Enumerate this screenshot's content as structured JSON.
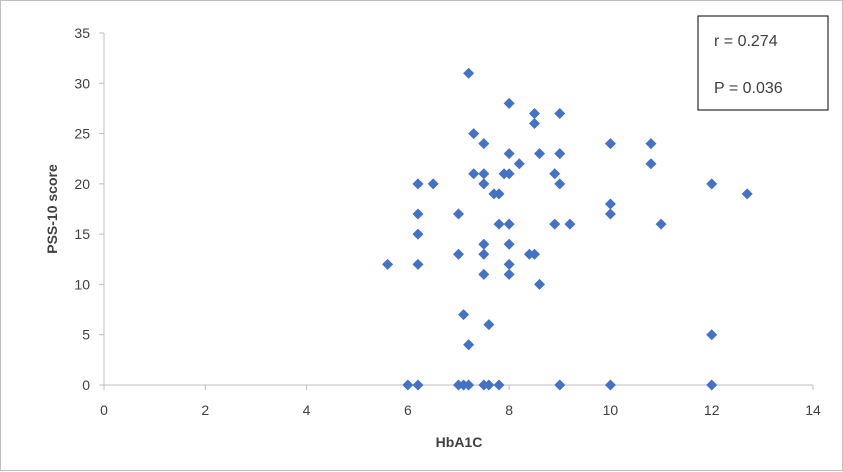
{
  "chart_data": {
    "type": "scatter",
    "xlabel": "HbA1C",
    "ylabel": "PSS-10 score",
    "xlim": [
      0,
      14
    ],
    "ylim": [
      0,
      35
    ],
    "xticks": [
      0,
      2,
      4,
      6,
      8,
      10,
      12,
      14
    ],
    "yticks": [
      0,
      5,
      10,
      15,
      20,
      25,
      30,
      35
    ],
    "grid": false,
    "marker": "diamond",
    "marker_color": "#4472C4",
    "annotations": [
      "r = 0.274",
      "P = 0.036"
    ],
    "annotation_box": "top-right",
    "points": [
      {
        "x": 5.6,
        "y": 12
      },
      {
        "x": 6.0,
        "y": 0
      },
      {
        "x": 6.2,
        "y": 0
      },
      {
        "x": 6.2,
        "y": 20
      },
      {
        "x": 6.2,
        "y": 17
      },
      {
        "x": 6.2,
        "y": 15
      },
      {
        "x": 6.2,
        "y": 12
      },
      {
        "x": 6.5,
        "y": 20
      },
      {
        "x": 7.0,
        "y": 17
      },
      {
        "x": 7.0,
        "y": 13
      },
      {
        "x": 7.0,
        "y": 0
      },
      {
        "x": 7.1,
        "y": 7
      },
      {
        "x": 7.1,
        "y": 0
      },
      {
        "x": 7.2,
        "y": 31
      },
      {
        "x": 7.2,
        "y": 4
      },
      {
        "x": 7.2,
        "y": 0
      },
      {
        "x": 7.3,
        "y": 25
      },
      {
        "x": 7.3,
        "y": 21
      },
      {
        "x": 7.5,
        "y": 24
      },
      {
        "x": 7.5,
        "y": 21
      },
      {
        "x": 7.5,
        "y": 20
      },
      {
        "x": 7.5,
        "y": 14
      },
      {
        "x": 7.5,
        "y": 13
      },
      {
        "x": 7.5,
        "y": 11
      },
      {
        "x": 7.5,
        "y": 0
      },
      {
        "x": 7.6,
        "y": 6
      },
      {
        "x": 7.6,
        "y": 0
      },
      {
        "x": 7.7,
        "y": 19
      },
      {
        "x": 7.8,
        "y": 19
      },
      {
        "x": 7.8,
        "y": 16
      },
      {
        "x": 7.8,
        "y": 0
      },
      {
        "x": 7.9,
        "y": 21
      },
      {
        "x": 8.0,
        "y": 28
      },
      {
        "x": 8.0,
        "y": 23
      },
      {
        "x": 8.0,
        "y": 21
      },
      {
        "x": 8.0,
        "y": 16
      },
      {
        "x": 8.0,
        "y": 14
      },
      {
        "x": 8.0,
        "y": 12
      },
      {
        "x": 8.0,
        "y": 11
      },
      {
        "x": 8.2,
        "y": 22
      },
      {
        "x": 8.4,
        "y": 13
      },
      {
        "x": 8.5,
        "y": 27
      },
      {
        "x": 8.5,
        "y": 26
      },
      {
        "x": 8.5,
        "y": 13
      },
      {
        "x": 8.6,
        "y": 23
      },
      {
        "x": 8.6,
        "y": 10
      },
      {
        "x": 8.9,
        "y": 21
      },
      {
        "x": 8.9,
        "y": 16
      },
      {
        "x": 9.0,
        "y": 27
      },
      {
        "x": 9.0,
        "y": 23
      },
      {
        "x": 9.0,
        "y": 20
      },
      {
        "x": 9.0,
        "y": 0
      },
      {
        "x": 9.2,
        "y": 16
      },
      {
        "x": 10.0,
        "y": 24
      },
      {
        "x": 10.0,
        "y": 18
      },
      {
        "x": 10.0,
        "y": 17
      },
      {
        "x": 10.0,
        "y": 0
      },
      {
        "x": 10.8,
        "y": 24
      },
      {
        "x": 10.8,
        "y": 22
      },
      {
        "x": 11.0,
        "y": 16
      },
      {
        "x": 12.0,
        "y": 20
      },
      {
        "x": 12.0,
        "y": 5
      },
      {
        "x": 12.0,
        "y": 0
      },
      {
        "x": 12.7,
        "y": 19
      }
    ]
  }
}
